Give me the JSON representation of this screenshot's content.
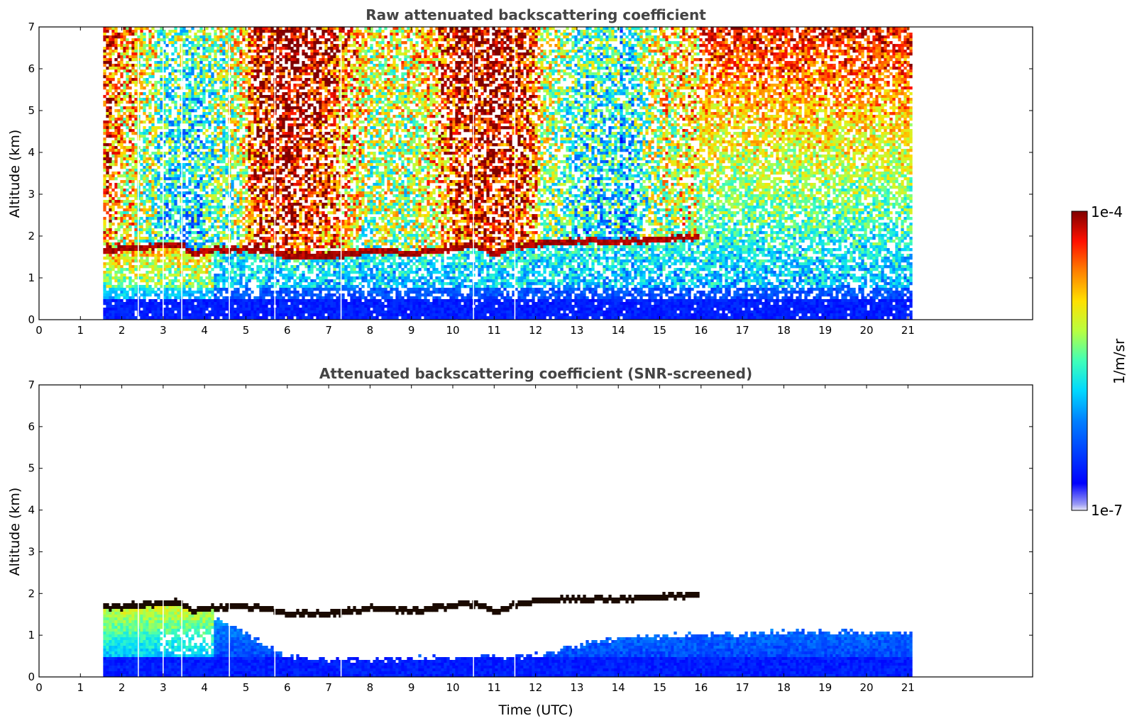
{
  "chart_data": [
    {
      "type": "heatmap",
      "title": "Raw attenuated backscattering coefficient",
      "xlabel": "",
      "ylabel": "Altitude (km)",
      "xlim": [
        0,
        24
      ],
      "ylim": [
        0,
        7
      ],
      "xticks": [
        "0",
        "1",
        "2",
        "3",
        "4",
        "5",
        "6",
        "7",
        "8",
        "9",
        "10",
        "11",
        "12",
        "13",
        "14",
        "15",
        "16",
        "17",
        "18",
        "19",
        "20",
        "21"
      ],
      "yticks": [
        "0",
        "1",
        "2",
        "3",
        "4",
        "5",
        "6",
        "7"
      ],
      "data_time_range": [
        1.55,
        21.1
      ],
      "data_gaps_time": [
        2.4,
        3.0,
        3.45,
        4.6,
        5.7,
        7.3,
        10.5,
        11.5
      ],
      "layer_top": {
        "time": [
          1.55,
          2.0,
          3.0,
          3.4,
          3.7,
          4.2,
          5.0,
          5.6,
          6.0,
          7.0,
          8.0,
          9.0,
          10.0,
          10.5,
          11.0,
          11.5,
          12.0,
          13.0,
          14.0,
          15.0,
          15.7
        ],
        "altitude_km": [
          1.7,
          1.72,
          1.8,
          1.82,
          1.6,
          1.7,
          1.72,
          1.65,
          1.55,
          1.55,
          1.68,
          1.62,
          1.75,
          1.8,
          1.6,
          1.78,
          1.85,
          1.9,
          1.9,
          1.95,
          2.0
        ]
      },
      "grid": false
    },
    {
      "type": "heatmap",
      "title": "Attenuated backscattering coefficient (SNR-screened)",
      "xlabel": "Time (UTC)",
      "ylabel": "Altitude (km)",
      "xlim": [
        0,
        24
      ],
      "ylim": [
        0,
        7
      ],
      "xticks": [
        "0",
        "1",
        "2",
        "3",
        "4",
        "5",
        "6",
        "7",
        "8",
        "9",
        "10",
        "11",
        "12",
        "13",
        "14",
        "15",
        "16",
        "17",
        "18",
        "19",
        "20",
        "21"
      ],
      "yticks": [
        "0",
        "1",
        "2",
        "3",
        "4",
        "5",
        "6",
        "7"
      ],
      "data_time_range": [
        1.55,
        21.1
      ],
      "data_gaps_time": [
        2.4,
        3.0,
        3.45,
        4.6,
        5.7,
        7.3,
        10.5,
        11.5
      ],
      "screened_noise_top": {
        "time": [
          1.55,
          4.0,
          6.0,
          8.0,
          10.0,
          12.0,
          14.0,
          16.0,
          18.0,
          21.1
        ],
        "altitude_km": [
          1.8,
          1.6,
          0.5,
          0.45,
          0.5,
          0.55,
          1.0,
          1.05,
          1.1,
          1.1
        ]
      },
      "grid": false
    }
  ],
  "colorbar": {
    "label": "1/m/sr",
    "max_label": "1e-4",
    "min_label": "1e-7",
    "scale": "log",
    "colormap": "jet",
    "colors": [
      "#e8e8f8",
      "#0000ff",
      "#00aaff",
      "#00ffcc",
      "#aaff55",
      "#ffff00",
      "#ff8800",
      "#ff0000",
      "#800000"
    ]
  }
}
